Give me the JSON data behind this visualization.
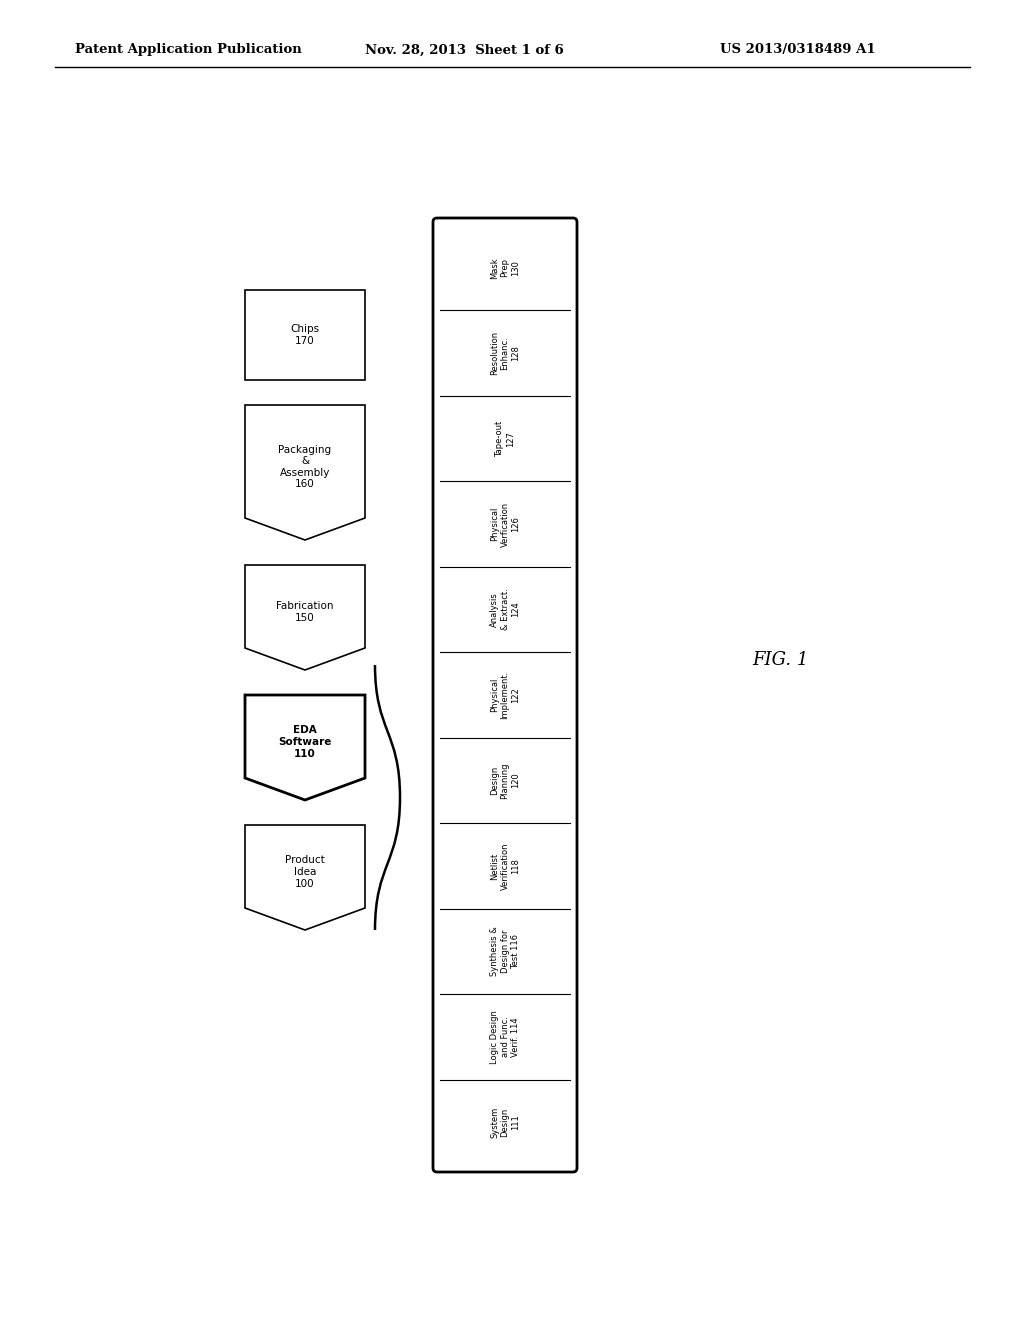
{
  "background_color": "#ffffff",
  "header_text": "Patent Application Publication",
  "header_date": "Nov. 28, 2013  Sheet 1 of 6",
  "header_patent": "US 2013/0318489 A1",
  "fig_label": "FIG. 1",
  "left_stack": [
    {
      "label": "Chips\n170",
      "bold": false,
      "shape": "rect",
      "extra_top": true
    },
    {
      "label": "Packaging\n&\nAssembly\n160",
      "bold": false,
      "shape": "chevron_v"
    },
    {
      "label": "Fabrication\n150",
      "bold": false,
      "shape": "chevron_v"
    },
    {
      "label": "EDA\nSoftware\n110",
      "bold": true,
      "shape": "chevron_v"
    },
    {
      "label": "Product\nIdea\n100",
      "bold": false,
      "shape": "chevron_v"
    }
  ],
  "eda_steps": [
    {
      "line1": "System",
      "line2": "Design",
      "line3": "111"
    },
    {
      "line1": "Logic Design",
      "line2": "and Func.",
      "line3": "Verif. 114"
    },
    {
      "line1": "Synthesis &",
      "line2": "Design for",
      "line3": "Test 116"
    },
    {
      "line1": "Netlist",
      "line2": "Verification",
      "line3": "118"
    },
    {
      "line1": "Design",
      "line2": "Planning",
      "line3": "120"
    },
    {
      "line1": "Physical",
      "line2": "Implement.",
      "line3": "122"
    },
    {
      "line1": "Analysis",
      "line2": "& Extract.",
      "line3": "124"
    },
    {
      "line1": "Physical",
      "line2": "Verfication",
      "line3": "126"
    },
    {
      "line1": "Tape-out",
      "line2": "127",
      "line3": ""
    },
    {
      "line1": "Resolution",
      "line2": "Enhanc.",
      "line3": "128"
    },
    {
      "line1": "Mask",
      "line2": "Prep",
      "line3": "130"
    }
  ]
}
